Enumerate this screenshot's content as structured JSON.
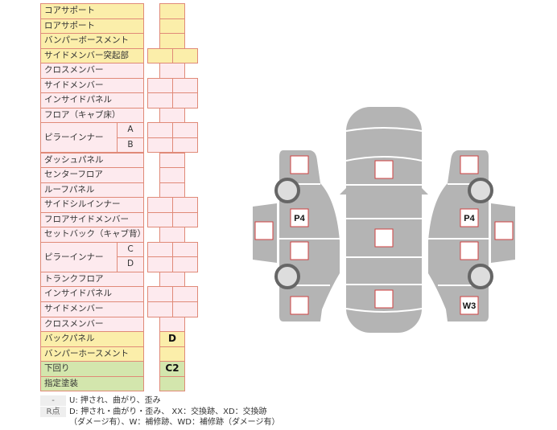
{
  "rows": [
    {
      "label": "コアサポート",
      "type": "single",
      "color": "y",
      "value": ""
    },
    {
      "label": "ロアサポート",
      "type": "single",
      "color": "y",
      "value": ""
    },
    {
      "label": "バンパーボースメント",
      "type": "single",
      "color": "y",
      "value": ""
    },
    {
      "label": "サイドメンバー突起部",
      "type": "double",
      "color": "y",
      "value": ""
    },
    {
      "label": "クロスメンバー",
      "type": "single",
      "color": "p",
      "value": ""
    },
    {
      "label": "サイドメンバー",
      "type": "double",
      "color": "p",
      "value": ""
    },
    {
      "label": "インサイドパネル",
      "type": "double",
      "color": "p",
      "value": ""
    },
    {
      "label": "フロア（キャブ床）",
      "type": "single",
      "color": "p",
      "value": ""
    },
    {
      "label": "ピラーインナー",
      "sub": "A",
      "type": "double",
      "color": "p",
      "value": "",
      "group_start": true
    },
    {
      "label": "",
      "sub": "B",
      "type": "double",
      "color": "p",
      "value": ""
    },
    {
      "label": "ダッシュパネル",
      "type": "single",
      "color": "p",
      "value": ""
    },
    {
      "label": "センターフロア",
      "type": "single",
      "color": "p",
      "value": ""
    },
    {
      "label": "ルーフパネル",
      "type": "single",
      "color": "p",
      "value": ""
    },
    {
      "label": "サイドシルインナー",
      "type": "double",
      "color": "p",
      "value": ""
    },
    {
      "label": "フロアサイドメンバー",
      "type": "double",
      "color": "p",
      "value": ""
    },
    {
      "label": "セットバック（キャブ背）",
      "type": "single",
      "color": "p",
      "value": ""
    },
    {
      "label": "ピラーインナー",
      "sub": "C",
      "type": "double",
      "color": "p",
      "value": "",
      "group_start": true
    },
    {
      "label": "",
      "sub": "D",
      "type": "double",
      "color": "p",
      "value": ""
    },
    {
      "label": "トランクフロア",
      "type": "single",
      "color": "p",
      "value": ""
    },
    {
      "label": "インサイドパネル",
      "type": "double",
      "color": "p",
      "value": ""
    },
    {
      "label": "サイドメンバー",
      "type": "double",
      "color": "p",
      "value": ""
    },
    {
      "label": "クロスメンバー",
      "type": "single",
      "color": "p",
      "value": ""
    },
    {
      "label": "バックパネル",
      "type": "single",
      "color": "y",
      "value": "D"
    },
    {
      "label": "バンパーホースメント",
      "type": "single",
      "color": "y",
      "value": ""
    },
    {
      "label": "下回り",
      "type": "single",
      "color": "g",
      "value": "C2"
    },
    {
      "label": "指定塗装",
      "type": "single",
      "color": "g",
      "value": ""
    }
  ],
  "legend": [
    {
      "key": "-",
      "text": "U: 押され、曲がり、歪み"
    },
    {
      "key": "R点",
      "text": "D: 押され・曲がり・歪み、 XX：交換跡、XD：交換跡",
      "text2": "（ダメージ有）、W：補修跡、WD：補修跡（ダメージ有）"
    }
  ],
  "car_marks": [
    {
      "id": "left-front",
      "value": ""
    },
    {
      "id": "left-front-door",
      "value": "P4"
    },
    {
      "id": "left-rear-door",
      "value": ""
    },
    {
      "id": "left-rear",
      "value": ""
    },
    {
      "id": "left-door-panel",
      "value": ""
    },
    {
      "id": "center-hood",
      "value": ""
    },
    {
      "id": "center-roof",
      "value": ""
    },
    {
      "id": "center-trunk",
      "value": ""
    },
    {
      "id": "right-front",
      "value": ""
    },
    {
      "id": "right-front-door",
      "value": "P4"
    },
    {
      "id": "right-rear-door",
      "value": ""
    },
    {
      "id": "right-rear",
      "value": "W3"
    },
    {
      "id": "right-door-panel",
      "value": ""
    }
  ],
  "colors": {
    "yellow": "#fbeeaa",
    "pink": "#fdeaee",
    "green": "#d3e6ad",
    "border": "#e08a78",
    "car": "#b4b4b4",
    "mark_border": "#d04040"
  }
}
